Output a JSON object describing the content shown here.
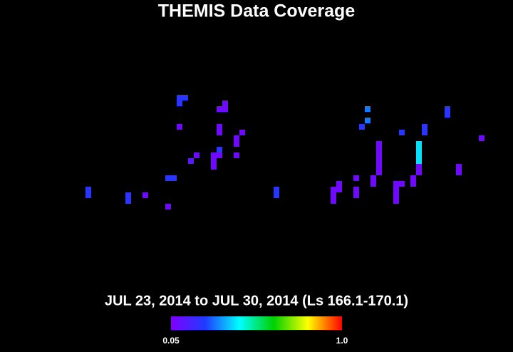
{
  "chart_data": {
    "type": "heatmap",
    "title": "THEMIS Data Coverage",
    "subtitle": "JUL 23, 2014 to JUL 30, 2014 (Ls 166.1-170.1)",
    "xlim": [
      0,
      360
    ],
    "ylim": [
      -90,
      90
    ],
    "x": [
      62,
      62,
      90,
      90,
      102,
      118,
      118,
      122,
      126,
      130,
      126,
      126,
      134,
      138,
      154,
      158,
      158,
      154,
      154,
      150,
      154,
      150,
      154,
      150,
      166,
      170,
      166,
      166,
      194,
      194,
      258,
      258,
      254,
      282,
      298,
      298,
      314,
      314,
      338,
      266,
      266,
      266,
      266,
      266,
      266,
      294,
      294,
      294,
      294,
      294,
      294,
      322,
      322,
      250,
      262,
      262,
      238,
      238,
      234,
      234,
      234,
      250,
      250,
      278,
      278,
      278,
      278,
      282,
      290,
      290
    ],
    "y": [
      -23,
      -27,
      -27,
      -31,
      -27,
      -35,
      -15,
      -15,
      41.5,
      41.5,
      37.5,
      21,
      -3,
      1,
      33.5,
      37.5,
      33.5,
      21,
      17,
      1,
      5,
      -3,
      1,
      -7,
      13,
      17,
      9,
      1,
      -23,
      -27,
      33.5,
      25.5,
      21,
      17,
      21,
      17,
      33.5,
      29.5,
      13,
      9,
      5,
      1,
      -3,
      -7,
      -11,
      9,
      5,
      1,
      -3,
      -7,
      -11,
      -7,
      -11,
      -15,
      -15,
      -19,
      -19,
      -23,
      -23,
      -27,
      -31,
      -23,
      -27,
      -19,
      -23,
      -27,
      -31,
      -19,
      -15,
      -19
    ],
    "values": [
      0.22,
      0.22,
      0.22,
      0.22,
      0.08,
      0.08,
      0.22,
      0.22,
      0.22,
      0.22,
      0.22,
      0.08,
      0.12,
      0.08,
      0.08,
      0.08,
      0.08,
      0.08,
      0.08,
      0.08,
      0.22,
      0.08,
      0.08,
      0.08,
      0.08,
      0.08,
      0.08,
      0.08,
      0.22,
      0.22,
      0.3,
      0.3,
      0.22,
      0.22,
      0.22,
      0.22,
      0.22,
      0.22,
      0.08,
      0.08,
      0.08,
      0.08,
      0.08,
      0.08,
      0.08,
      0.4,
      0.4,
      0.4,
      0.4,
      0.08,
      0.08,
      0.08,
      0.08,
      0.08,
      0.08,
      0.08,
      0.08,
      0.08,
      0.08,
      0.08,
      0.08,
      0.08,
      0.08,
      0.08,
      0.08,
      0.08,
      0.08,
      0.08,
      0.08,
      0.08
    ],
    "clim": [
      0.05,
      1
    ],
    "colorscale": [
      "#7f00ff",
      "#1e3cff",
      "#00ffff",
      "#00d000",
      "#ffff00",
      "#ff0000"
    ],
    "cticks": [
      0.05,
      {
        "value": 1,
        "label": "1.0"
      }
    ]
  }
}
